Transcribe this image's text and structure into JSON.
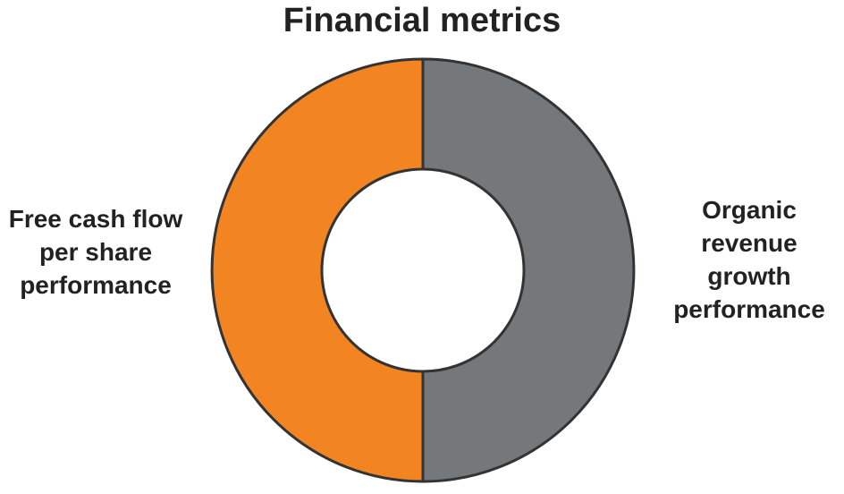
{
  "chart_data": {
    "type": "donut",
    "title": "Financial metrics",
    "categories": [
      "Organic revenue growth performance",
      "Free cash flow per share performance"
    ],
    "values": [
      50,
      50
    ],
    "colors": [
      "#75787b",
      "#f28522"
    ]
  }
}
